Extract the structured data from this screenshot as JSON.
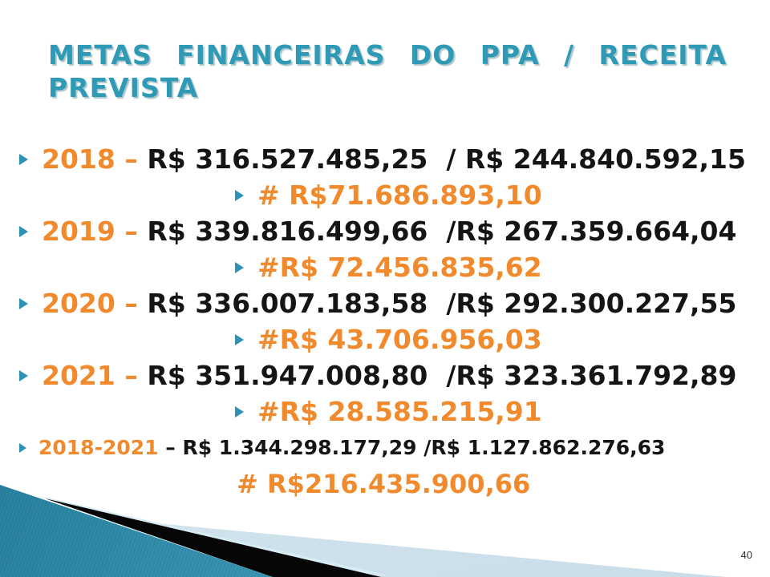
{
  "slide": {
    "title_line1": "METAS FINANCEIRAS DO PPA / RECEITA",
    "title_line2": "PREVISTA",
    "page_number": "40",
    "colors": {
      "title_teal": "#2f9ab6",
      "accent_orange": "#f08a2c",
      "bullet_teal": "#2d93b6",
      "body_black": "#151515",
      "footer_teal_dark": "#1d7390",
      "footer_teal_light": "#5db4ce",
      "footer_pale": "#d3e4ed",
      "footer_black": "#060606"
    },
    "rows": [
      {
        "kind": "year",
        "bullet": true,
        "highlight": "2018 –",
        "value": " R$ 316.527.485,25  / R$ 244.840.592,15"
      },
      {
        "kind": "sub",
        "bullet": true,
        "highlight": "# R$71.686.893,10",
        "value": ""
      },
      {
        "kind": "year",
        "bullet": true,
        "highlight": "2019 –",
        "value": " R$ 339.816.499,66  /R$ 267.359.664,04"
      },
      {
        "kind": "sub",
        "bullet": true,
        "highlight": "#R$ 72.456.835,62",
        "value": ""
      },
      {
        "kind": "year",
        "bullet": true,
        "highlight": "2020 –",
        "value": " R$ 336.007.183,58  /R$ 292.300.227,55"
      },
      {
        "kind": "sub",
        "bullet": true,
        "highlight": "#R$ 43.706.956,03",
        "value": ""
      },
      {
        "kind": "year",
        "bullet": true,
        "highlight": "2021 –",
        "value": " R$ 351.947.008,80  /R$ 323.361.792,89"
      },
      {
        "kind": "sub",
        "bullet": true,
        "highlight": "#R$ 28.585.215,91",
        "value": ""
      },
      {
        "kind": "range",
        "bullet": true,
        "highlight": "2018-2021",
        "value": " – R$ 1.344.298.177,29 /R$ 1.127.862.276,63"
      },
      {
        "kind": "total",
        "bullet": false,
        "highlight": "# R$216.435.900,66",
        "value": ""
      }
    ]
  }
}
